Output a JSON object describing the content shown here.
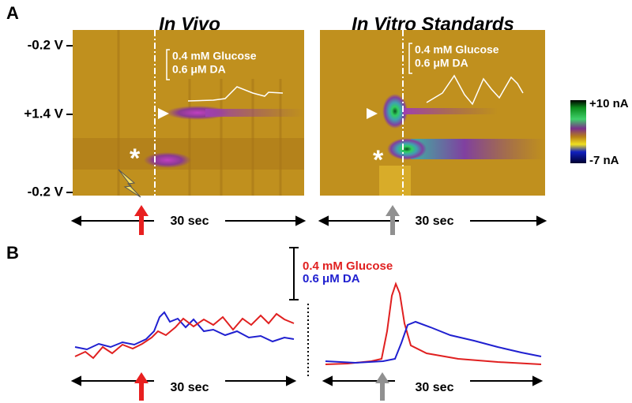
{
  "panel_a": {
    "label": "A",
    "plots": [
      {
        "title": "In Vivo",
        "glucose_label": "0.4 mM Glucose",
        "da_label": "0.6 μM DA",
        "time_label": "30 sec"
      },
      {
        "title": "In Vitro Standards",
        "glucose_label": "0.4 mM Glucose",
        "da_label": "0.6 μM DA",
        "time_label": "30 sec"
      }
    ],
    "y_labels": [
      "-0.2 V",
      "+1.4 V",
      "-0.2 V"
    ],
    "colorbar": {
      "max_label": "+10 nA",
      "min_label": "-7 nA"
    }
  },
  "panel_b": {
    "label": "B",
    "glucose_label": "0.4 mM Glucose",
    "da_label": "0.6 μM DA",
    "time_labels": [
      "30 sec",
      "30 sec"
    ]
  }
}
